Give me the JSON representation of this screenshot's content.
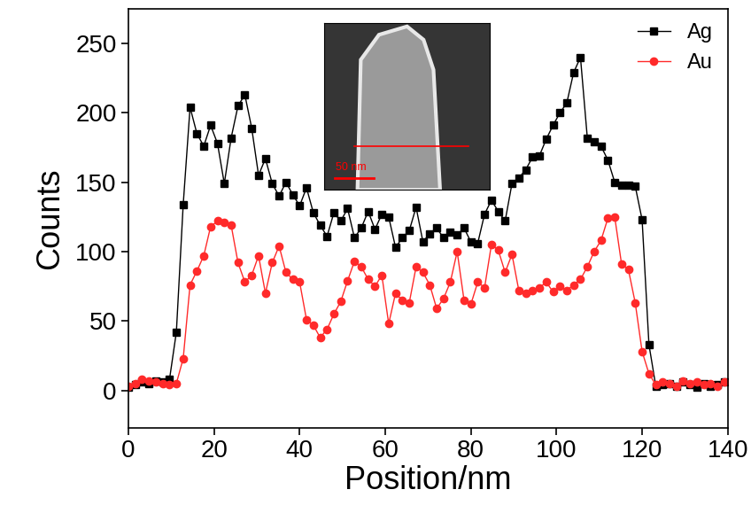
{
  "chart_data": {
    "type": "line",
    "x_label": "Position/nm",
    "y_label": "Counts",
    "annotations": [
      "50 nm"
    ],
    "x": [
      0,
      1.6,
      3.2,
      4.8,
      6.4,
      8,
      9.6,
      11.2,
      12.8,
      14.4,
      16,
      17.6,
      19.2,
      20.8,
      22.4,
      24,
      25.6,
      27.2,
      28.8,
      30.4,
      32,
      33.6,
      35.2,
      36.8,
      38.4,
      40,
      41.6,
      43.2,
      44.8,
      46.4,
      48,
      49.6,
      51.2,
      52.8,
      54.4,
      56,
      57.6,
      59.2,
      60.8,
      62.4,
      64,
      65.6,
      67.2,
      68.8,
      70.4,
      72,
      73.6,
      75.2,
      76.8,
      78.4,
      80,
      81.6,
      83.2,
      84.8,
      86.4,
      88,
      89.6,
      91.2,
      92.8,
      94.4,
      96,
      97.6,
      99.2,
      100.8,
      102.4,
      104,
      105.6,
      107.2,
      108.8,
      110.4,
      112,
      113.6,
      115.2,
      116.8,
      118.4,
      120,
      121.6,
      123.2,
      124.8,
      126.4,
      128,
      129.6,
      131.2,
      132.8,
      134.4,
      136,
      137.6,
      139.2
    ],
    "series": [
      {
        "name": "Ag",
        "color": "#000000",
        "marker": "square",
        "line_style": "solid",
        "values": [
          2,
          4,
          6,
          5,
          7,
          6,
          8,
          42,
          134,
          204,
          185,
          176,
          191,
          178,
          149,
          182,
          205,
          213,
          189,
          155,
          167,
          149,
          140,
          150,
          141,
          133,
          146,
          128,
          119,
          111,
          128,
          122,
          131,
          110,
          117,
          129,
          116,
          127,
          125,
          103,
          110,
          115,
          132,
          107,
          113,
          117,
          110,
          114,
          112,
          117,
          107,
          106,
          127,
          137,
          129,
          122,
          149,
          153,
          159,
          168,
          169,
          181,
          191,
          200,
          207,
          229,
          240,
          182,
          179,
          176,
          166,
          150,
          148,
          148,
          147,
          123,
          33,
          3,
          4,
          5,
          3,
          6,
          4,
          2,
          5,
          3,
          4,
          6
        ]
      },
      {
        "name": "Au",
        "color": "#ff2a2a",
        "marker": "circle",
        "line_style": "solid",
        "values": [
          3,
          5,
          8,
          7,
          6,
          5,
          4,
          5,
          23,
          76,
          86,
          97,
          118,
          122,
          121,
          119,
          92,
          78,
          83,
          97,
          70,
          92,
          104,
          85,
          80,
          78,
          51,
          47,
          38,
          44,
          55,
          64,
          79,
          93,
          89,
          80,
          75,
          83,
          48,
          70,
          65,
          63,
          89,
          85,
          76,
          59,
          66,
          78,
          100,
          65,
          62,
          78,
          74,
          105,
          101,
          85,
          98,
          72,
          70,
          72,
          74,
          78,
          71,
          75,
          72,
          76,
          80,
          89,
          100,
          108,
          124,
          125,
          91,
          87,
          63,
          28,
          12,
          4,
          6,
          5,
          3,
          7,
          5,
          6,
          4,
          5,
          3,
          6
        ]
      }
    ],
    "xlim": [
      0,
      140
    ],
    "xticks": [
      0,
      20,
      40,
      60,
      80,
      100,
      120,
      140
    ],
    "ylim": [
      -27,
      275
    ],
    "yticks": [
      0,
      50,
      100,
      150,
      200,
      250
    ],
    "grid": false,
    "legend": "upper right"
  }
}
